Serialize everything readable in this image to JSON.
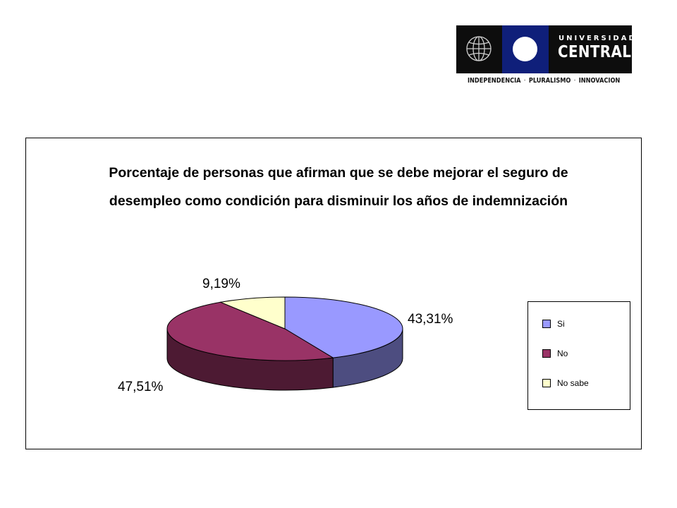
{
  "logo": {
    "line1": "UNIVERSIDAD",
    "line2": "CENTRAL",
    "motto": [
      "INDEPENDENCIA",
      "PLURALISMO",
      "INNOVACION"
    ],
    "separator": "·"
  },
  "chart_data": {
    "type": "pie",
    "style": "3d",
    "title_line1": "Porcentaje de personas que afirman que se debe mejorar el seguro de",
    "title_line2": "desempleo como condición para disminuir los años de indemnización",
    "slices": [
      {
        "name": "Si",
        "value": 43.31,
        "label": "43,31%",
        "color": "#9999ff"
      },
      {
        "name": "No",
        "value": 47.51,
        "label": "47,51%",
        "color": "#993366"
      },
      {
        "name": "No sabe",
        "value": 9.19,
        "label": "9,19%",
        "color": "#ffffcc"
      }
    ],
    "legend_position": "right"
  }
}
